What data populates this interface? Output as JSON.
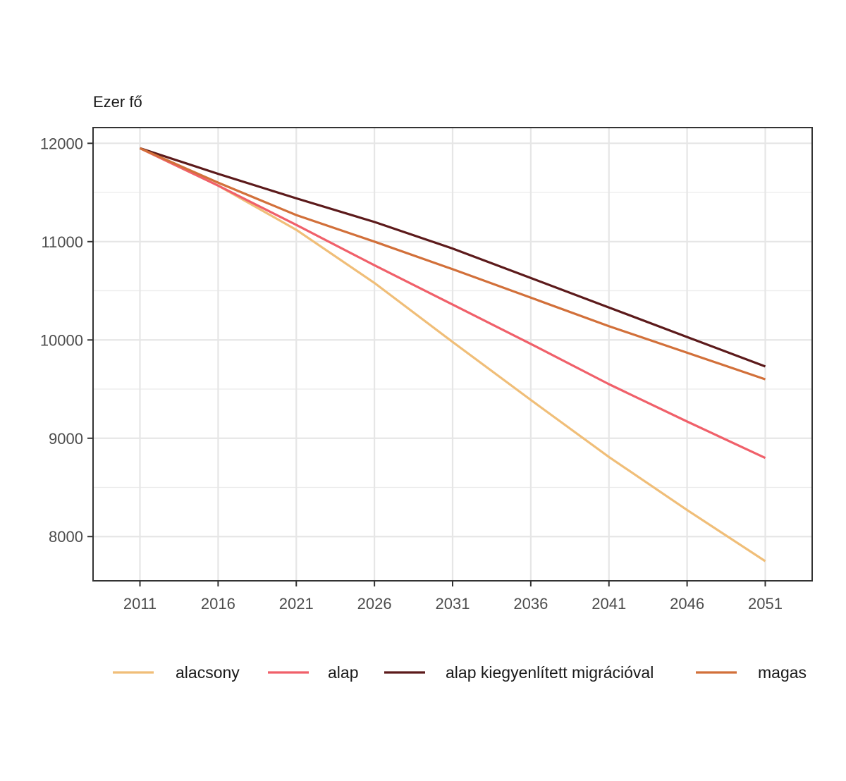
{
  "chart_data": {
    "type": "line",
    "ylabel": "Ezer fő",
    "x": [
      2011,
      2016,
      2021,
      2026,
      2031,
      2036,
      2041,
      2046,
      2051
    ],
    "ylim": [
      7550,
      12160
    ],
    "yticks": [
      8000,
      9000,
      10000,
      11000,
      12000
    ],
    "grid": true,
    "legend_position": "bottom",
    "series": [
      {
        "name": "alacsony",
        "color": "#F0BE78",
        "values": [
          11950,
          11570,
          11120,
          10580,
          9980,
          9390,
          8810,
          8270,
          7750
        ]
      },
      {
        "name": "alap",
        "color": "#F0606A",
        "values": [
          11950,
          11570,
          11170,
          10760,
          10360,
          9960,
          9550,
          9170,
          8800
        ]
      },
      {
        "name": "alap kiegyenlített migrációval",
        "color": "#5C1A1B",
        "values": [
          11950,
          11690,
          11440,
          11200,
          10930,
          10630,
          10330,
          10030,
          9730
        ]
      },
      {
        "name": "magas",
        "color": "#D2703A",
        "values": [
          11950,
          11600,
          11270,
          11000,
          10720,
          10430,
          10140,
          9870,
          9600
        ]
      }
    ]
  }
}
